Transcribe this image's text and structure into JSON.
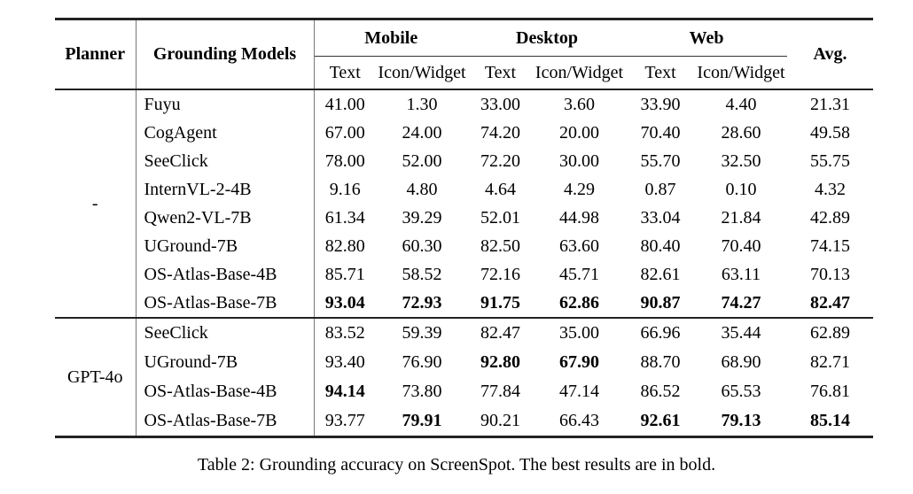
{
  "table": {
    "header": {
      "planner": "Planner",
      "grounding_models": "Grounding Models",
      "groups": [
        "Mobile",
        "Desktop",
        "Web"
      ],
      "subheaders": [
        "Text",
        "Icon/Widget",
        "Text",
        "Icon/Widget",
        "Text",
        "Icon/Widget"
      ],
      "avg": "Avg."
    },
    "sections": [
      {
        "planner": "-",
        "rows": [
          {
            "model": "Fuyu",
            "values": [
              "41.00",
              "1.30",
              "33.00",
              "3.60",
              "33.90",
              "4.40",
              "21.31"
            ],
            "bold": []
          },
          {
            "model": "CogAgent",
            "values": [
              "67.00",
              "24.00",
              "74.20",
              "20.00",
              "70.40",
              "28.60",
              "49.58"
            ],
            "bold": []
          },
          {
            "model": "SeeClick",
            "values": [
              "78.00",
              "52.00",
              "72.20",
              "30.00",
              "55.70",
              "32.50",
              "55.75"
            ],
            "bold": []
          },
          {
            "model": "InternVL-2-4B",
            "values": [
              "9.16",
              "4.80",
              "4.64",
              "4.29",
              "0.87",
              "0.10",
              "4.32"
            ],
            "bold": []
          },
          {
            "model": "Qwen2-VL-7B",
            "values": [
              "61.34",
              "39.29",
              "52.01",
              "44.98",
              "33.04",
              "21.84",
              "42.89"
            ],
            "bold": []
          },
          {
            "model": "UGround-7B",
            "values": [
              "82.80",
              "60.30",
              "82.50",
              "63.60",
              "80.40",
              "70.40",
              "74.15"
            ],
            "bold": []
          },
          {
            "model": "OS-Atlas-Base-4B",
            "values": [
              "85.71",
              "58.52",
              "72.16",
              "45.71",
              "82.61",
              "63.11",
              "70.13"
            ],
            "bold": []
          },
          {
            "model": "OS-Atlas-Base-7B",
            "values": [
              "93.04",
              "72.93",
              "91.75",
              "62.86",
              "90.87",
              "74.27",
              "82.47"
            ],
            "bold": [
              0,
              1,
              2,
              3,
              4,
              5,
              6
            ]
          }
        ]
      },
      {
        "planner": "GPT-4o",
        "rows": [
          {
            "model": "SeeClick",
            "values": [
              "83.52",
              "59.39",
              "82.47",
              "35.00",
              "66.96",
              "35.44",
              "62.89"
            ],
            "bold": []
          },
          {
            "model": "UGround-7B",
            "values": [
              "93.40",
              "76.90",
              "92.80",
              "67.90",
              "88.70",
              "68.90",
              "82.71"
            ],
            "bold": [
              2,
              3
            ]
          },
          {
            "model": "OS-Atlas-Base-4B",
            "values": [
              "94.14",
              "73.80",
              "77.84",
              "47.14",
              "86.52",
              "65.53",
              "76.81"
            ],
            "bold": [
              0
            ]
          },
          {
            "model": "OS-Atlas-Base-7B",
            "values": [
              "93.77",
              "79.91",
              "90.21",
              "66.43",
              "92.61",
              "79.13",
              "85.14"
            ],
            "bold": [
              1,
              4,
              5,
              6
            ]
          }
        ]
      }
    ],
    "caption": "Table 2: Grounding accuracy on ScreenSpot. The best results are in bold."
  }
}
